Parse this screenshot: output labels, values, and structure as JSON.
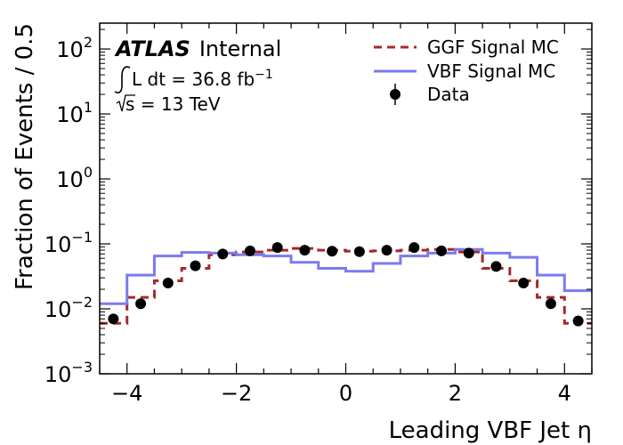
{
  "chart_data": {
    "type": "line",
    "xlabel": "Leading VBF Jet η",
    "ylabel": "Fraction of Events / 0.5",
    "xlim": [
      -4.5,
      4.5
    ],
    "ylim": [
      0.001,
      250
    ],
    "yscale": "log",
    "x_ticks": [
      -4,
      -2,
      0,
      2,
      4
    ],
    "x_tick_labels": [
      "−4",
      "−2",
      "0",
      "2",
      "4"
    ],
    "y_ticks": [
      0.001,
      0.01,
      0.1,
      1,
      10,
      100
    ],
    "y_tick_base": "10",
    "y_tick_exponents": [
      "−3",
      "−2",
      "−1",
      "0",
      "1",
      "2"
    ],
    "bin_edges": [
      -4.5,
      -4.0,
      -3.5,
      -3.0,
      -2.5,
      -2.0,
      -1.5,
      -1.0,
      -0.5,
      0.0,
      0.5,
      1.0,
      1.5,
      2.0,
      2.5,
      3.0,
      3.5,
      4.0,
      4.5
    ],
    "series": [
      {
        "name": "GGF Signal MC",
        "style": "dashed-step",
        "color": "#a52a2a",
        "values": [
          0.006,
          0.015,
          0.027,
          0.042,
          0.068,
          0.075,
          0.08,
          0.085,
          0.08,
          0.077,
          0.078,
          0.08,
          0.082,
          0.075,
          0.042,
          0.027,
          0.015,
          0.006
        ]
      },
      {
        "name": "VBF Signal MC",
        "style": "solid-step",
        "color": "#7b7bf0",
        "values": [
          0.012,
          0.033,
          0.065,
          0.074,
          0.072,
          0.068,
          0.065,
          0.052,
          0.042,
          0.038,
          0.05,
          0.065,
          0.072,
          0.082,
          0.072,
          0.062,
          0.033,
          0.019
        ]
      },
      {
        "name": "Data",
        "style": "points",
        "color": "#000000",
        "x": [
          -4.25,
          -3.75,
          -3.25,
          -2.75,
          -2.25,
          -1.75,
          -1.25,
          -0.75,
          -0.25,
          0.25,
          0.75,
          1.25,
          1.75,
          2.25,
          2.75,
          3.25,
          3.75,
          4.25
        ],
        "values": [
          0.007,
          0.012,
          0.025,
          0.046,
          0.07,
          0.078,
          0.088,
          0.08,
          0.077,
          0.076,
          0.08,
          0.088,
          0.078,
          0.072,
          0.045,
          0.025,
          0.012,
          0.0065
        ]
      }
    ],
    "legend_position": "top-right",
    "grid": false
  },
  "annotations": {
    "atlas_bold": "ATLAS",
    "atlas_label": "Internal",
    "lumi_prefix": "L dt = 36.8 fb",
    "lumi_exponent": "−1",
    "energy": "s = 13 TeV"
  }
}
